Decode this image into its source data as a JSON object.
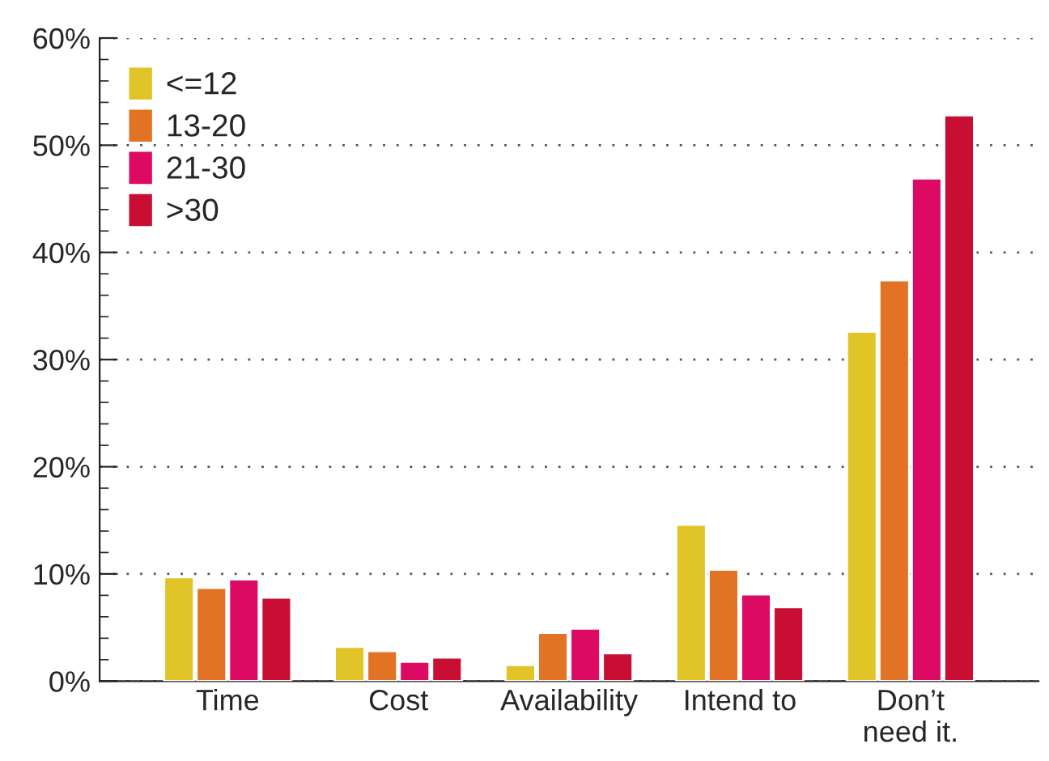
{
  "chart_data": {
    "type": "bar",
    "categories": [
      "Time",
      "Cost",
      "Availability",
      "Intend to",
      "Don’t\nneed it."
    ],
    "series": [
      {
        "name": "<=12",
        "color": "#e0c428",
        "values": [
          9.7,
          3.2,
          1.5,
          14.6,
          32.6
        ]
      },
      {
        "name": "13-20",
        "color": "#e27224",
        "values": [
          8.7,
          2.8,
          4.5,
          10.4,
          37.4
        ]
      },
      {
        "name": "21-30",
        "color": "#dc0a62",
        "values": [
          9.5,
          1.8,
          4.9,
          8.1,
          46.9
        ]
      },
      {
        "name": ">30",
        "color": "#c80e32",
        "values": [
          7.8,
          2.2,
          2.6,
          6.9,
          52.8
        ]
      }
    ],
    "ylim": [
      0,
      60
    ],
    "yticks": [
      {
        "value": 0,
        "label": "0%"
      },
      {
        "value": 10,
        "label": "10%"
      },
      {
        "value": 20,
        "label": "20%"
      },
      {
        "value": 30,
        "label": "30%"
      },
      {
        "value": 40,
        "label": "40%"
      },
      {
        "value": 50,
        "label": "50%"
      },
      {
        "value": 60,
        "label": "60%"
      }
    ],
    "grid": "y",
    "legend": "top left"
  }
}
